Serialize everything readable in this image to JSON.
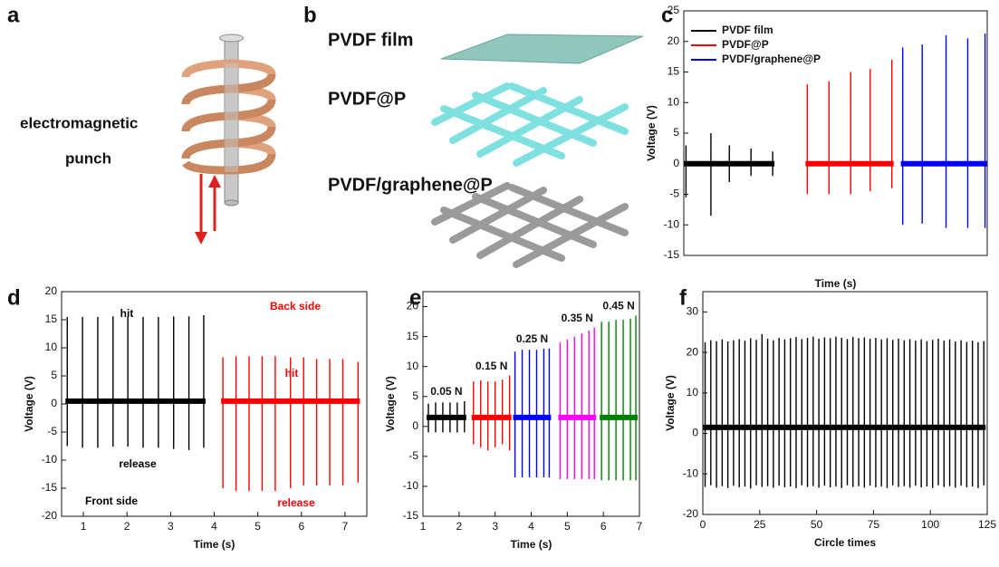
{
  "diagrams": {
    "a": {
      "label": "a",
      "texts": [
        "electromagnetic",
        "punch"
      ]
    },
    "b": {
      "label": "b",
      "layers": [
        "PVDF film",
        "PVDF@P",
        "PVDF/graphene@P"
      ]
    }
  },
  "chart_data": [
    {
      "type": "spike",
      "label": "c",
      "xlabel": "Time (s)",
      "ylabel": "Voltage (V)",
      "xlim": [
        0,
        14
      ],
      "ylim": [
        -15,
        25
      ],
      "yticks": [
        -15,
        -10,
        -5,
        0,
        5,
        10,
        15,
        20,
        25
      ],
      "legend": "upper left",
      "series": [
        {
          "name": "PVDF film",
          "color": "#000000",
          "baseline": 0,
          "x": [
            0.1,
            1.25,
            2.1,
            3.1,
            4.1
          ],
          "values": [
            3,
            5,
            3,
            2.5,
            2
          ],
          "low": [
            -5.5,
            -8.5,
            -3,
            -2,
            -2
          ]
        },
        {
          "name": "PVDF@P",
          "color": "#ff0000",
          "baseline": 0,
          "x": [
            5.7,
            6.7,
            7.7,
            8.6,
            9.6
          ],
          "values": [
            13,
            13.5,
            15,
            15.5,
            17
          ],
          "low": [
            -5,
            -5,
            -5,
            -4.5,
            -4
          ]
        },
        {
          "name": "PVDF/graphene@P",
          "color": "#0000ff",
          "baseline": 0,
          "x": [
            10.1,
            11,
            12.1,
            13.1,
            13.9
          ],
          "values": [
            19,
            19.5,
            21,
            20.5,
            21.3
          ],
          "low": [
            -10,
            -9.8,
            -10.5,
            -10.5,
            -10.5
          ]
        }
      ]
    },
    {
      "type": "spike",
      "label": "d",
      "xlabel": "Time (s)",
      "ylabel": "Voltage (V)",
      "xlim": [
        0.5,
        7.5
      ],
      "xticks": [
        1,
        2,
        3,
        4,
        5,
        6,
        7
      ],
      "ylim": [
        -20,
        20
      ],
      "yticks": [
        -20,
        -15,
        -10,
        -5,
        0,
        5,
        10,
        15,
        20
      ],
      "annotations": [
        {
          "text": "hit",
          "color": "#000000"
        },
        {
          "text": "release",
          "color": "#000000"
        },
        {
          "text": "Front side",
          "color": "#000000"
        },
        {
          "text": "Back side",
          "color": "#ff0000"
        },
        {
          "text": "hit",
          "color": "#ff0000"
        },
        {
          "text": "release",
          "color": "#ff0000"
        }
      ],
      "series": [
        {
          "color": "#000000",
          "baseline": 0.5,
          "x": [
            0.63,
            0.98,
            1.33,
            1.68,
            2.02,
            2.37,
            2.72,
            3.07,
            3.42,
            3.76
          ],
          "values": [
            15.5,
            15.5,
            15.5,
            15.6,
            15.6,
            15.5,
            15.5,
            15.6,
            15.6,
            15.8
          ],
          "low": [
            -7.5,
            -7.8,
            -7.8,
            -7.6,
            -7.6,
            -7.8,
            -7.8,
            -8,
            -8.2,
            -7.8
          ]
        },
        {
          "color": "#ff0000",
          "baseline": 0.5,
          "x": [
            4.2,
            4.5,
            4.8,
            5.1,
            5.4,
            5.75,
            6.05,
            6.35,
            6.65,
            6.95,
            7.3
          ],
          "values": [
            8.3,
            8.5,
            8.5,
            8.5,
            8.5,
            8.3,
            8.3,
            8,
            8,
            8,
            7.5
          ],
          "low": [
            -15,
            -15.5,
            -15.5,
            -15.5,
            -15.5,
            -15,
            -14.5,
            -14.5,
            -14.5,
            -14.5,
            -14
          ]
        }
      ]
    },
    {
      "type": "spike",
      "label": "e",
      "xlabel": "Time (s)",
      "ylabel": "Voltage (V)",
      "xlim": [
        1,
        7
      ],
      "xticks": [
        1,
        2,
        3,
        4,
        5,
        6,
        7
      ],
      "ylim": [
        -15,
        22.5
      ],
      "yticks": [
        -15,
        -10,
        -5,
        0,
        5,
        10,
        15,
        20
      ],
      "series_labels": true,
      "series": [
        {
          "name": "0.05 N",
          "color": "#000000",
          "baseline": 1.5,
          "x": [
            1.15,
            1.35,
            1.55,
            1.75,
            1.95,
            2.15
          ],
          "values": [
            3.8,
            4,
            4,
            4,
            4,
            4.2
          ],
          "low": [
            -1,
            -1,
            -1,
            -1,
            -1,
            -1
          ]
        },
        {
          "name": "0.15 N",
          "color": "#ff0000",
          "baseline": 1.5,
          "x": [
            2.4,
            2.6,
            2.8,
            3.0,
            3.2,
            3.4
          ],
          "values": [
            7.5,
            7.7,
            7.5,
            7.5,
            7.8,
            8.5
          ],
          "low": [
            -3,
            -3.5,
            -4,
            -3.5,
            -3,
            -4
          ]
        },
        {
          "name": "0.25 N",
          "color": "#0000ff",
          "baseline": 1.5,
          "x": [
            3.55,
            3.75,
            3.95,
            4.15,
            4.35,
            4.5
          ],
          "values": [
            12.5,
            12.8,
            12.8,
            12.8,
            13,
            13
          ],
          "low": [
            -8.5,
            -8.5,
            -8.5,
            -8.5,
            -8.5,
            -8.5
          ]
        },
        {
          "name": "0.35 N",
          "color": "#ff00ff",
          "baseline": 1.5,
          "x": [
            4.8,
            5.0,
            5.2,
            5.4,
            5.6,
            5.75
          ],
          "values": [
            14,
            14.5,
            15,
            15.5,
            16,
            16.5
          ],
          "low": [
            -8.8,
            -8.8,
            -8.8,
            -8.8,
            -8.8,
            -8.8
          ]
        },
        {
          "name": "0.45 N",
          "color": "#008000",
          "baseline": 1.5,
          "x": [
            5.95,
            6.15,
            6.35,
            6.55,
            6.75,
            6.9
          ],
          "values": [
            17.5,
            17.5,
            17.8,
            17.8,
            18,
            18.5
          ],
          "low": [
            -9,
            -9,
            -9,
            -9,
            -9,
            -9
          ]
        }
      ]
    },
    {
      "type": "spike",
      "label": "f",
      "xlabel": "Circle times",
      "ylabel": "Voltage (V)",
      "xlim": [
        0,
        125
      ],
      "xticks": [
        0,
        25,
        50,
        75,
        100,
        125
      ],
      "ylim": [
        -20,
        35
      ],
      "yticks": [
        -20,
        -10,
        0,
        10,
        20,
        30
      ],
      "series": [
        {
          "color": "#000000",
          "baseline": 1.5,
          "x": [
            1,
            3.5,
            6,
            8.5,
            11,
            13.5,
            16,
            18.5,
            21,
            23.5,
            26,
            28.5,
            31,
            33.5,
            36,
            38.5,
            41,
            43.5,
            46,
            48.5,
            51,
            53.5,
            56,
            58.5,
            61,
            63.5,
            66,
            68.5,
            71,
            73.5,
            76,
            78.5,
            81,
            83.5,
            86,
            88.5,
            91,
            93.5,
            96,
            98.5,
            101,
            103.5,
            106,
            108.5,
            111,
            113.5,
            116,
            118.5,
            121,
            123.5
          ],
          "values": [
            22.5,
            23,
            22.8,
            23.2,
            22.7,
            23,
            23.3,
            22.9,
            23.5,
            23.1,
            24.5,
            23.4,
            23,
            23.6,
            23.2,
            23.5,
            23.8,
            23.3,
            23.6,
            23.9,
            23.4,
            23.7,
            23.5,
            23.9,
            23.6,
            23.3,
            23.8,
            23.5,
            23.7,
            23.4,
            23.6,
            23.2,
            23.5,
            23.1,
            23.4,
            23,
            23.3,
            22.9,
            23.2,
            22.8,
            23.1,
            23.4,
            22.9,
            23.2,
            22.7,
            23,
            22.6,
            22.9,
            22.5,
            22.8
          ],
          "low": [
            -13.2,
            -12.8,
            -13.4,
            -13,
            -13.5,
            -12.9,
            -13.3,
            -13.1,
            -13.6,
            -12.8,
            -13.2,
            -13,
            -13.4,
            -12.9,
            -13.3,
            -13.1,
            -13.5,
            -12.8,
            -13.2,
            -13,
            -13.4,
            -12.9,
            -13.3,
            -13.1,
            -13.5,
            -12.8,
            -13.2,
            -13,
            -13.4,
            -12.9,
            -13.3,
            -13.1,
            -13.5,
            -12.8,
            -13.2,
            -13,
            -13.4,
            -12.9,
            -13.3,
            -13.1,
            -13.5,
            -12.8,
            -13.2,
            -13,
            -13.4,
            -12.9,
            -13.3,
            -13.1,
            -13.5,
            -12.8
          ]
        }
      ]
    }
  ]
}
